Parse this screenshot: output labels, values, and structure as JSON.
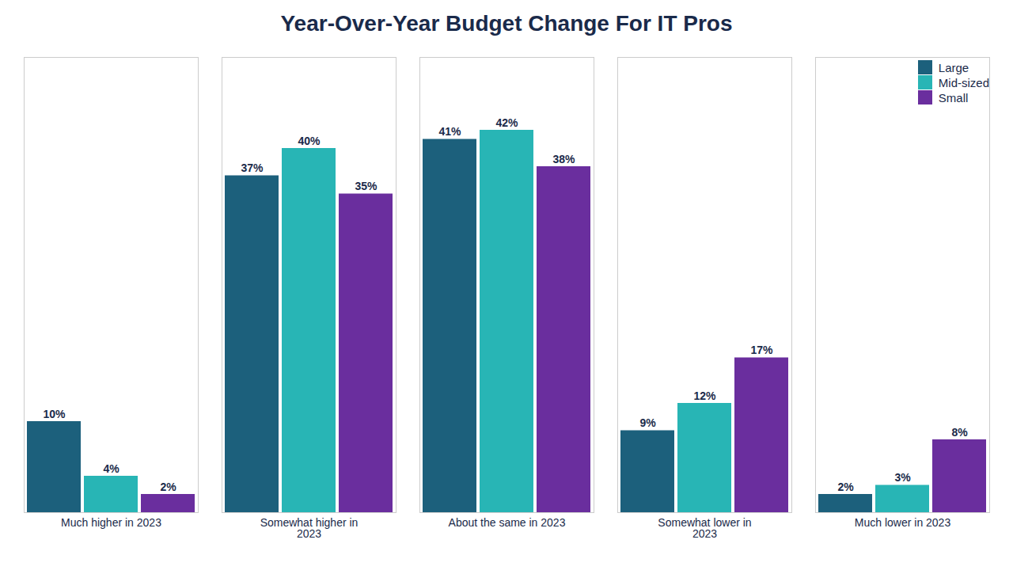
{
  "chart_data": {
    "type": "bar",
    "title": "Year-Over-Year Budget Change For IT Pros",
    "categories": [
      "Much higher in 2023",
      "Somewhat higher in\n2023",
      "About the same in 2023",
      "Somewhat lower in\n2023",
      "Much lower in 2023"
    ],
    "series": [
      {
        "name": "Large",
        "color": "#1c607c",
        "values": [
          10,
          37,
          41,
          9,
          2
        ],
        "value_labels": [
          "10%",
          "37%",
          "41%",
          "9%",
          "2%"
        ]
      },
      {
        "name": "Mid-sized",
        "color": "#28b5b5",
        "values": [
          4,
          40,
          42,
          12,
          3
        ],
        "value_labels": [
          "4%",
          "40%",
          "42%",
          "12%",
          "3%"
        ]
      },
      {
        "name": "Small",
        "color": "#6a2e9e",
        "values": [
          2,
          35,
          38,
          17,
          8
        ],
        "value_labels": [
          "2%",
          "35%",
          "38%",
          "17%",
          "8%"
        ]
      }
    ],
    "ylim": [
      0,
      50
    ],
    "grid": false,
    "legend": "upper right",
    "data_labels": true,
    "tick_labels": "x"
  }
}
